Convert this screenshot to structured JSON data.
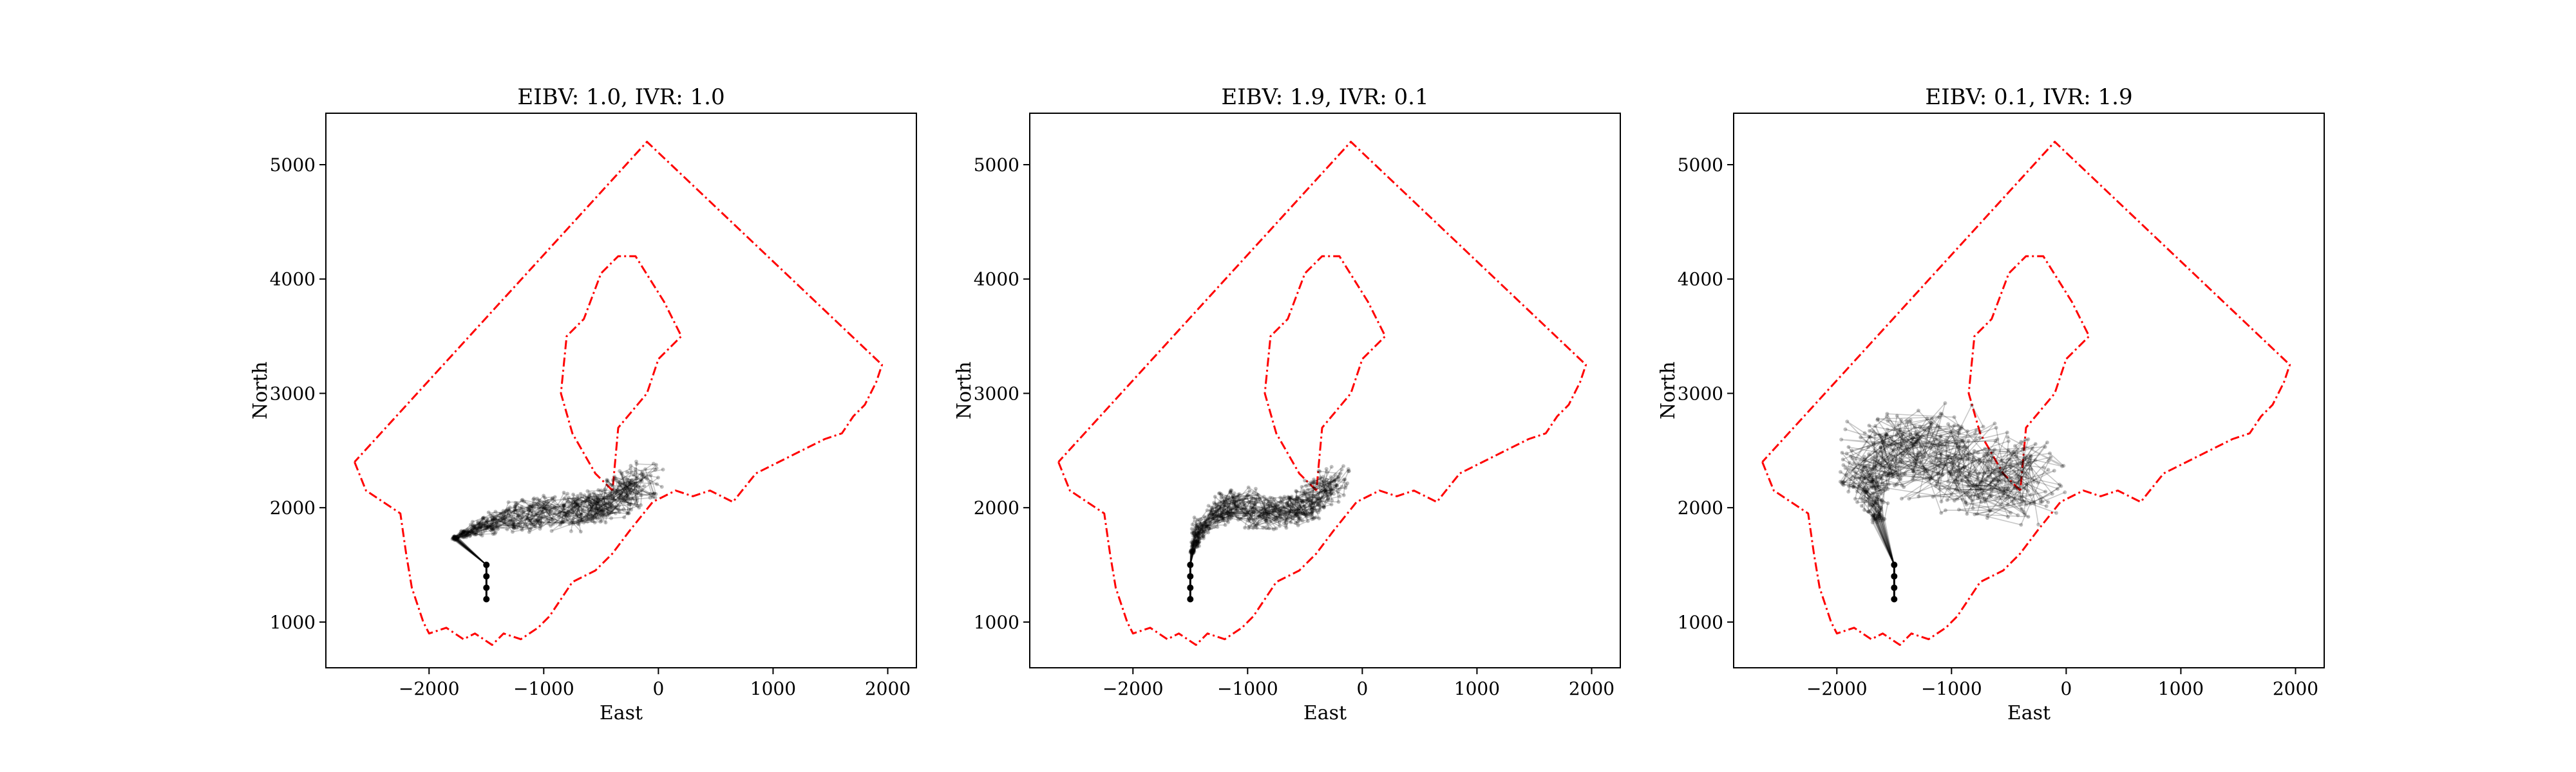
{
  "figure": {
    "colors": {
      "boundary": "#ff0000",
      "paths": "#000000",
      "frame": "#000000"
    }
  },
  "chart_data": [
    {
      "type": "line",
      "title": "EIBV: 1.0, IVR: 1.0",
      "xlabel": "East",
      "ylabel": "North",
      "xlim": [
        -2900,
        2250
      ],
      "ylim": [
        600,
        5450
      ],
      "xticks": [
        -2000,
        -1000,
        0,
        1000,
        2000
      ],
      "yticks": [
        1000,
        2000,
        3000,
        4000,
        5000
      ],
      "xtick_labels": [
        "−2000",
        "−1000",
        "0",
        "1000",
        "2000"
      ],
      "ytick_labels": [
        "1000",
        "2000",
        "3000",
        "4000",
        "5000"
      ],
      "grid": false,
      "start": {
        "x": [
          -1500,
          -1500,
          -1500,
          -1500
        ],
        "y": [
          1200,
          1300,
          1400,
          1500
        ]
      },
      "path_bundle": {
        "count": 30,
        "origin": [
          -1500,
          1500
        ],
        "centerline_x": [
          -1850,
          -1500,
          -1100,
          -700,
          -400,
          -150
        ],
        "centerline_y": [
          1700,
          1850,
          1950,
          1950,
          2050,
          2250
        ],
        "spread": 170
      }
    },
    {
      "type": "line",
      "title": "EIBV: 1.9, IVR: 0.1",
      "xlabel": "East",
      "ylabel": "North",
      "xlim": [
        -2900,
        2250
      ],
      "ylim": [
        600,
        5450
      ],
      "xticks": [
        -2000,
        -1000,
        0,
        1000,
        2000
      ],
      "yticks": [
        1000,
        2000,
        3000,
        4000,
        5000
      ],
      "xtick_labels": [
        "−2000",
        "−1000",
        "0",
        "1000",
        "2000"
      ],
      "ytick_labels": [
        "1000",
        "2000",
        "3000",
        "4000",
        "5000"
      ],
      "grid": false,
      "start": {
        "x": [
          -1500,
          -1500,
          -1500,
          -1500
        ],
        "y": [
          1200,
          1300,
          1400,
          1500
        ]
      },
      "path_bundle": {
        "count": 30,
        "origin": [
          -1500,
          1500
        ],
        "centerline_x": [
          -1500,
          -1400,
          -1100,
          -800,
          -500,
          -250
        ],
        "centerline_y": [
          1550,
          1850,
          2050,
          1950,
          2000,
          2250
        ],
        "spread": 150
      }
    },
    {
      "type": "line",
      "title": "EIBV: 0.1, IVR: 1.9",
      "xlabel": "East",
      "ylabel": "North",
      "xlim": [
        -2900,
        2250
      ],
      "ylim": [
        600,
        5450
      ],
      "xticks": [
        -2000,
        -1000,
        0,
        1000,
        2000
      ],
      "yticks": [
        1000,
        2000,
        3000,
        4000,
        5000
      ],
      "xtick_labels": [
        "−2000",
        "−1000",
        "0",
        "1000",
        "2000"
      ],
      "ytick_labels": [
        "1000",
        "2000",
        "3000",
        "4000",
        "5000"
      ],
      "grid": false,
      "start": {
        "x": [
          -1500,
          -1500,
          -1500,
          -1500
        ],
        "y": [
          1200,
          1300,
          1400,
          1500
        ]
      },
      "path_bundle": {
        "count": 30,
        "origin": [
          -1500,
          1500
        ],
        "centerline_x": [
          -1600,
          -1750,
          -1450,
          -1050,
          -650,
          -300
        ],
        "centerline_y": [
          1800,
          2300,
          2600,
          2450,
          2300,
          2200
        ],
        "spread": 380
      }
    }
  ],
  "boundary": {
    "outer": {
      "x": [
        -2650,
        -2550,
        -2400,
        -2250,
        -2200,
        -2150,
        -2050,
        -2000,
        -1850,
        -1700,
        -1600,
        -1450,
        -1350,
        -1200,
        -1050,
        -950,
        -850,
        -750,
        -550,
        -400,
        -250,
        -50,
        150,
        300,
        450,
        650,
        850,
        1050,
        1250,
        1450,
        1600,
        1700,
        1800,
        1900,
        1950,
        -100,
        -2650
      ],
      "y": [
        2400,
        2150,
        2050,
        1950,
        1600,
        1300,
        1000,
        900,
        950,
        850,
        900,
        800,
        900,
        850,
        950,
        1050,
        1200,
        1350,
        1450,
        1600,
        1800,
        2050,
        2150,
        2100,
        2150,
        2050,
        2300,
        2400,
        2500,
        2600,
        2650,
        2800,
        2900,
        3100,
        3250,
        5200,
        2400
      ]
    },
    "inner": {
      "x": [
        -400,
        -550,
        -750,
        -850,
        -800,
        -650,
        -500,
        -350,
        -200,
        50,
        200,
        0,
        -100,
        -350,
        -400
      ],
      "y": [
        2150,
        2300,
        2650,
        3000,
        3500,
        3650,
        4050,
        4200,
        4200,
        3800,
        3500,
        3300,
        3000,
        2700,
        2150
      ]
    }
  }
}
